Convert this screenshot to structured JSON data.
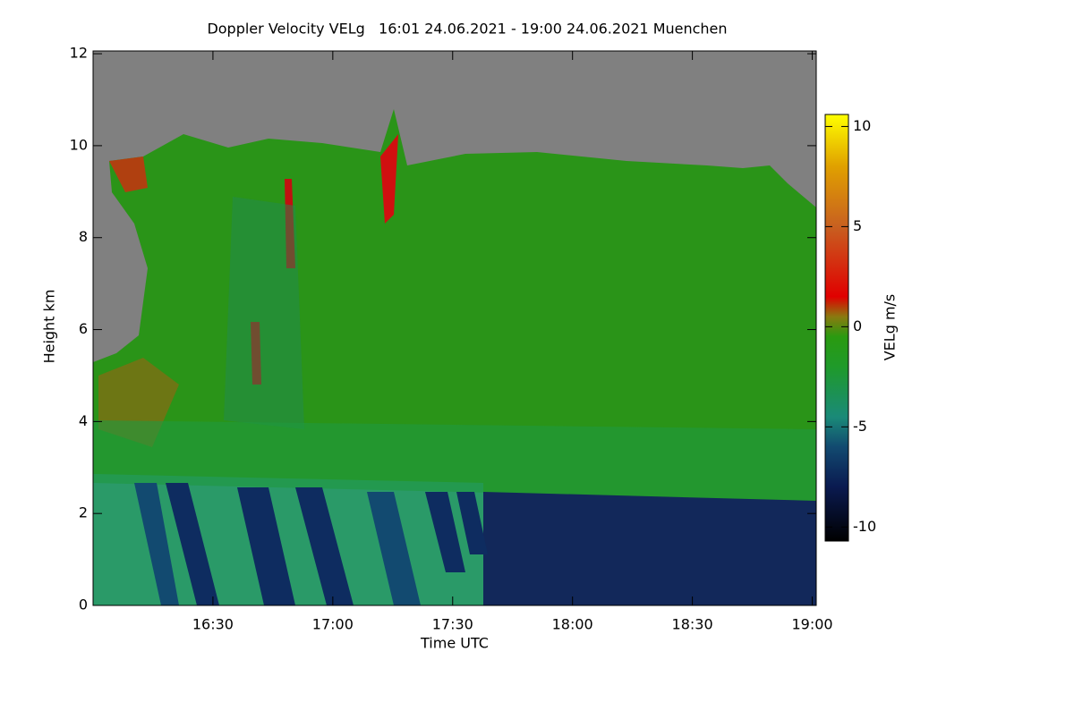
{
  "chart_data": {
    "type": "heatmap",
    "title": "Doppler Velocity VELg   16:01 24.06.2021 - 19:00 24.06.2021 Muenchen",
    "xlabel": "Time UTC",
    "ylabel": "Height km",
    "colorbar_label": "VELg m/s",
    "xlim": [
      960,
      1141
    ],
    "xticks": [
      {
        "value": 990,
        "label": "16:30"
      },
      {
        "value": 1020,
        "label": "17:00"
      },
      {
        "value": 1050,
        "label": "17:30"
      },
      {
        "value": 1080,
        "label": "18:00"
      },
      {
        "value": 1110,
        "label": "18:30"
      },
      {
        "value": 1140,
        "label": "19:00"
      }
    ],
    "ylim": [
      0,
      12.06
    ],
    "yticks": [
      0,
      2,
      4,
      6,
      8,
      10,
      12
    ],
    "clim": [
      -10.7,
      10.6
    ],
    "cticks": [
      -10,
      -5,
      0,
      5,
      10
    ],
    "colorscale": [
      [
        -10.7,
        "#000000"
      ],
      [
        -8,
        "#0a1a50"
      ],
      [
        -6,
        "#124a70"
      ],
      [
        -4.5,
        "#1a8a78"
      ],
      [
        -2,
        "#1f9a2a"
      ],
      [
        -0.5,
        "#2a9a10"
      ],
      [
        0.5,
        "#8a7a10"
      ],
      [
        1.5,
        "#e00000"
      ],
      [
        5,
        "#c86020"
      ],
      [
        8,
        "#e0a000"
      ],
      [
        10.6,
        "#ffff00"
      ]
    ],
    "background": "#808080"
  }
}
